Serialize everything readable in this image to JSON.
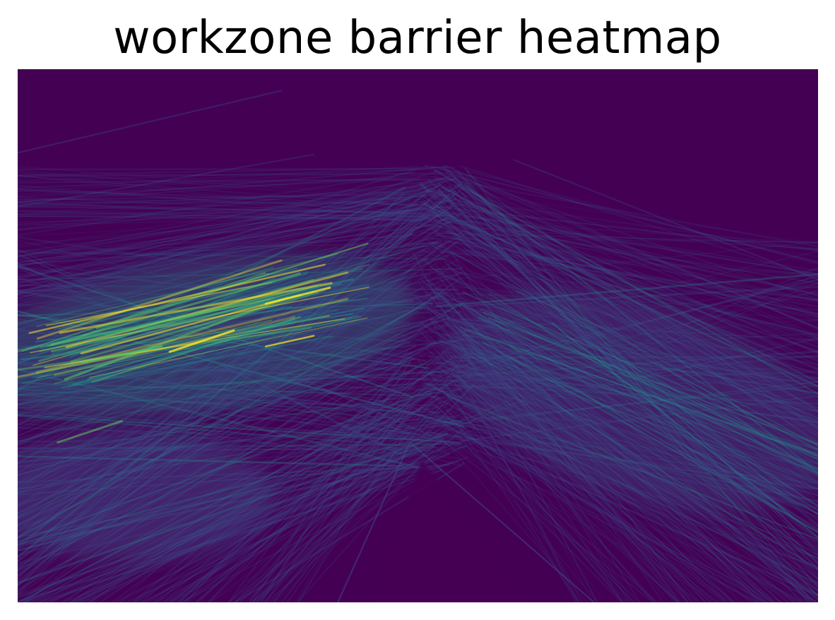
{
  "chart_data": {
    "type": "heatmap",
    "title": "workzone barrier heatmap",
    "xlabel": "",
    "ylabel": "",
    "axes_visible": false,
    "grid": false,
    "legend": "none",
    "colormap": "viridis",
    "colors": {
      "background": "#440154",
      "low": "#3b528b",
      "mid": "#21918c",
      "high": "#5ec962",
      "peak": "#fde725"
    },
    "pattern": {
      "apex_x": 0.52,
      "apex_y": 0.18,
      "notch_apex_y": 0.7,
      "hotspot_center": [
        0.2,
        0.52
      ],
      "description_hidden": true
    }
  }
}
